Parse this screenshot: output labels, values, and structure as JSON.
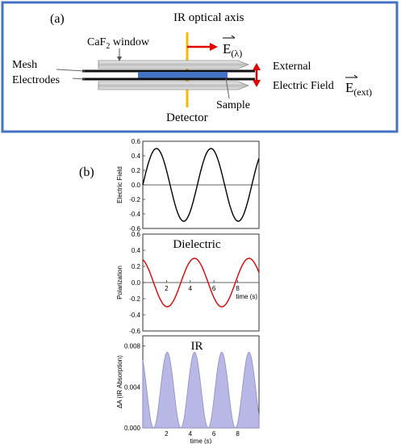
{
  "panel_a": {
    "label": "(a)",
    "ir_axis_label": "IR optical axis",
    "caf2_label": {
      "base": "CaF",
      "sub": "2",
      "rest": " window"
    },
    "mesh_line1": "Mesh",
    "mesh_line2": "Electrodes",
    "e_lambda": {
      "base": "E",
      "sub": "(λ)"
    },
    "external_line1": "External",
    "external_line2": "Electric Field",
    "e_ext": {
      "base": "E",
      "sub": "(ext)"
    },
    "sample_label": "Sample",
    "detector_label": "Detector",
    "colors": {
      "border": "#4472c4",
      "sample": "#4472c4",
      "arrow": "#e00000",
      "ir_axis": "#f5b800"
    }
  },
  "panel_b": {
    "label": "(b)",
    "chart_data": [
      {
        "type": "line",
        "ylabel": "Electric Field",
        "xlim": [
          0,
          9.8
        ],
        "ylim": [
          -0.6,
          0.6
        ],
        "yticks": [
          "0.6",
          "0.4",
          "0.2",
          "0.0",
          "-0.2",
          "-0.4",
          "-0.6"
        ],
        "series": [
          {
            "color": "#000000",
            "amplitude": 0.5,
            "period": 4.6,
            "phase_rad": 0,
            "x": [
              0,
              1.15,
              2.3,
              3.45,
              4.6,
              5.75,
              6.9,
              8.05,
              9.2
            ],
            "y": [
              0,
              0.5,
              0,
              -0.5,
              0,
              0.5,
              0,
              -0.5,
              0
            ]
          }
        ]
      },
      {
        "type": "line",
        "title": "Dielectric",
        "xlabel": "time (s)",
        "ylabel": "Polarization",
        "xlim": [
          0,
          9.8
        ],
        "ylim": [
          -0.6,
          0.6
        ],
        "xticks": [
          "2",
          "4",
          "6",
          "8"
        ],
        "yticks": [
          "0.6",
          "0.4",
          "0.2",
          "0.0",
          "-0.2",
          "-0.4",
          "-0.6"
        ],
        "series": [
          {
            "color": "#e00000",
            "amplitude": 0.3,
            "period": 4.6,
            "phase_rad": 1.9,
            "x": [
              0,
              2.3,
              4.6,
              6.9,
              9.2
            ],
            "y": [
              0.29,
              -0.29,
              0.29,
              -0.29,
              0.29
            ]
          }
        ]
      },
      {
        "type": "area",
        "title": "IR",
        "xlabel": "time (s)",
        "ylabel": "ΔA (IR Absorption)",
        "xlim": [
          0,
          9.8
        ],
        "ylim": [
          0,
          0.009
        ],
        "xticks": [
          "2",
          "4",
          "6",
          "8"
        ],
        "yticks": [
          "0.008",
          "0.004",
          "0.000"
        ],
        "series": [
          {
            "color": "#b8b8e6",
            "amplitude": 0.0074,
            "period": 2.3,
            "phase_rad": 1.9,
            "x": [
              0.25,
              1.4,
              2.55,
              3.7,
              4.85,
              6.0,
              7.15,
              8.3,
              9.45
            ],
            "y": [
              0.0074,
              0,
              0.0074,
              0,
              0.0074,
              0,
              0.0074,
              0,
              0.0074
            ]
          }
        ]
      }
    ]
  }
}
